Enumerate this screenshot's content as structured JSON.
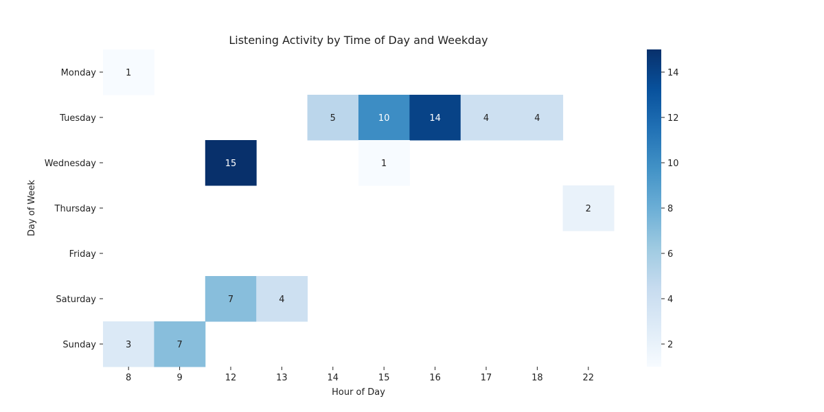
{
  "chart_data": {
    "type": "heatmap",
    "title": "Listening Activity by Time of Day and Weekday",
    "xlabel": "Hour of Day",
    "ylabel": "Day of Week",
    "x_categories": [
      "8",
      "9",
      "12",
      "13",
      "14",
      "15",
      "16",
      "17",
      "18",
      "22"
    ],
    "y_categories": [
      "Monday",
      "Tuesday",
      "Wednesday",
      "Thursday",
      "Friday",
      "Saturday",
      "Sunday"
    ],
    "values": [
      [
        1,
        null,
        null,
        null,
        null,
        null,
        null,
        null,
        null,
        null
      ],
      [
        null,
        null,
        null,
        null,
        5,
        10,
        14,
        4,
        4,
        null
      ],
      [
        null,
        null,
        15,
        null,
        null,
        1,
        null,
        null,
        null,
        null
      ],
      [
        null,
        null,
        null,
        null,
        null,
        null,
        null,
        null,
        null,
        2
      ],
      [
        null,
        null,
        null,
        null,
        null,
        null,
        null,
        null,
        null,
        null
      ],
      [
        null,
        null,
        7,
        4,
        null,
        null,
        null,
        null,
        null,
        null
      ],
      [
        3,
        7,
        null,
        null,
        null,
        null,
        null,
        null,
        null,
        null
      ]
    ],
    "colorbar": {
      "min": 1,
      "max": 15,
      "ticks": [
        2,
        4,
        6,
        8,
        10,
        12,
        14
      ]
    },
    "colormap": "Blues",
    "grid": false,
    "legend": "colorbar-right"
  }
}
